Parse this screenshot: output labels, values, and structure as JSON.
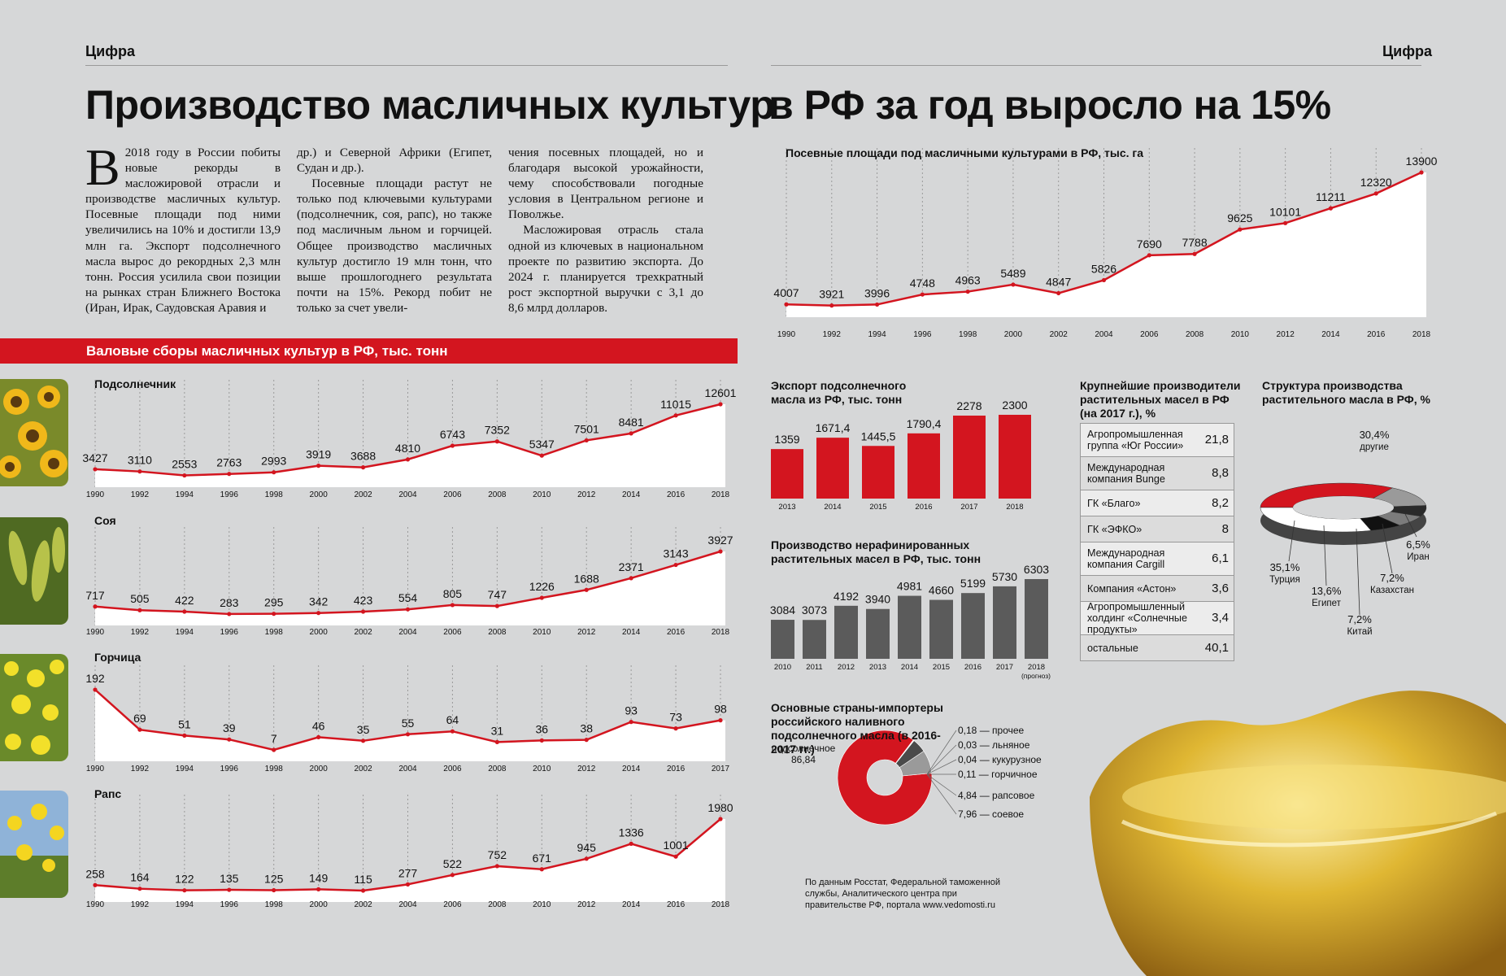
{
  "header": {
    "section_left": "Цифра",
    "section_right": "Цифра",
    "title_part1": "Производство масличных культур",
    "title_part2": "в РФ за год выросло на 15%"
  },
  "article": {
    "dropcap": "В",
    "col1": "2018 году в России побиты новые рекорды в масложировой отрасли и производстве масличных культур. Посевные площади под ними увеличились на 10% и достигли 13,9 млн га. Экспорт подсолнечного масла вырос до рекордных 2,3 млн тонн. Россия усилила свои позиции на рынках стран Ближнего Востока (Иран, Ирак, Саудовская Аравия и",
    "col2a": "др.) и Северной Африки (Египет, Судан и др.).",
    "col2b": "Посевные площади растут не только под ключевыми культурами (подсолнечник, соя, рапс), но также под масличным льном и горчицей. Общее производство масличных культур достигло 19 млн тонн, что выше прошлогоднего результата почти на 15%. Рекорд побит не только за счет увели-",
    "col3a": "чения посевных площадей, но и благодаря высокой урожайности, чему способствовали погодные условия в Центральном регионе и Поволжье.",
    "col3b": "Масложировая отрасль стала одной из ключевых в национальном проекте по развитию экспорта. До 2024 г. планируется трехкратный рост экспортной выручки с 3,1 до 8,6 млрд долларов."
  },
  "gross_harvest_title": "Валовые сборы масличных культур в РФ, тыс. тонн",
  "source_note": "По данным Росстат, Федеральной таможенной службы, Аналитического центра при правительстве РФ, портала www.vedomosti.ru",
  "chart_data": [
    {
      "id": "sown",
      "type": "line",
      "title": "Посевные площади под масличными культурами в РФ, тыс. га",
      "x": [
        "1990",
        "1992",
        "1994",
        "1996",
        "1998",
        "2000",
        "2002",
        "2004",
        "2006",
        "2008",
        "2010",
        "2012",
        "2014",
        "2016",
        "2018"
      ],
      "values": [
        4007,
        3921,
        3996,
        4748,
        4963,
        5489,
        4847,
        5826,
        7690,
        7788,
        9625,
        10101,
        11211,
        12320,
        13900
      ],
      "labels": [
        "4007",
        "3921",
        "3996",
        "4748",
        "4963",
        "5489",
        "4847",
        "5826",
        "7690",
        "7788",
        "9625",
        "10101",
        "11211",
        "12320",
        "13900"
      ]
    },
    {
      "id": "sunflower",
      "type": "line",
      "title": "Подсолнечник",
      "x": [
        "1990",
        "1992",
        "1994",
        "1996",
        "1998",
        "2000",
        "2002",
        "2004",
        "2006",
        "2008",
        "2010",
        "2012",
        "2014",
        "2016",
        "2018"
      ],
      "values": [
        3427,
        3110,
        2553,
        2763,
        2993,
        3919,
        3688,
        4810,
        6743,
        7352,
        5347,
        7501,
        8481,
        11015,
        12601
      ],
      "labels": [
        "3427",
        "3110",
        "2553",
        "2763",
        "2993",
        "3919",
        "3688",
        "4810",
        "6743",
        "7352",
        "5347",
        "7501",
        "8481",
        "11015",
        "12601"
      ]
    },
    {
      "id": "soy",
      "type": "line",
      "title": "Соя",
      "x": [
        "1990",
        "1992",
        "1994",
        "1996",
        "1998",
        "2000",
        "2002",
        "2004",
        "2006",
        "2008",
        "2010",
        "2012",
        "2014",
        "2016",
        "2018"
      ],
      "values": [
        717,
        505,
        422,
        283,
        295,
        342,
        423,
        554,
        805,
        747,
        1226,
        1688,
        2371,
        3143,
        3927
      ],
      "labels": [
        "717",
        "505",
        "422",
        "283",
        "295",
        "342",
        "423",
        "554",
        "805",
        "747",
        "1226",
        "1688",
        "2371",
        "3143",
        "3927"
      ]
    },
    {
      "id": "mustard",
      "type": "line",
      "title": "Горчица",
      "x": [
        "1990",
        "1992",
        "1994",
        "1996",
        "1998",
        "2000",
        "2002",
        "2004",
        "2006",
        "2008",
        "2010",
        "2012",
        "2014",
        "2016",
        "2017"
      ],
      "values": [
        192,
        69,
        51,
        39,
        7,
        46,
        35,
        55,
        64,
        31,
        36,
        38,
        93,
        73,
        98
      ],
      "labels": [
        "192",
        "69",
        "51",
        "39",
        "7",
        "46",
        "35",
        "55",
        "64",
        "31",
        "36",
        "38",
        "93",
        "73",
        "98"
      ]
    },
    {
      "id": "rapeseed",
      "type": "line",
      "title": "Рапс",
      "x": [
        "1990",
        "1992",
        "1994",
        "1996",
        "1998",
        "2000",
        "2002",
        "2004",
        "2006",
        "2008",
        "2010",
        "2012",
        "2014",
        "2016",
        "2018"
      ],
      "values": [
        258,
        164,
        122,
        135,
        125,
        149,
        115,
        277,
        522,
        752,
        671,
        945,
        1336,
        1001,
        1980
      ],
      "labels": [
        "258",
        "164",
        "122",
        "135",
        "125",
        "149",
        "115",
        "277",
        "522",
        "752",
        "671",
        "945",
        "1336",
        "1001",
        "1980"
      ]
    },
    {
      "id": "export",
      "type": "bar",
      "title": "Экспорт подсолнечного масла из РФ, тыс. тонн",
      "categories": [
        "2013",
        "2014",
        "2015",
        "2016",
        "2017",
        "2018"
      ],
      "values": [
        1359,
        1671.4,
        1445.5,
        1790.4,
        2278,
        2300
      ],
      "labels": [
        "1359",
        "1671,4",
        "1445,5",
        "1790,4",
        "2278",
        "2300"
      ]
    },
    {
      "id": "crude",
      "type": "bar",
      "title": "Производство нерафинированных растительных масел в РФ, тыс. тонн",
      "categories": [
        "2010",
        "2011",
        "2012",
        "2013",
        "2014",
        "2015",
        "2016",
        "2017",
        "2018"
      ],
      "forecast_note": "(прогноз)",
      "values": [
        3084,
        3073,
        4192,
        3940,
        4981,
        4660,
        5199,
        5730,
        6303
      ],
      "labels": [
        "3084",
        "3073",
        "4192",
        "3940",
        "4981",
        "4660",
        "5199",
        "5730",
        "6303"
      ]
    },
    {
      "id": "producers",
      "type": "table",
      "title": "Крупнейшие производители растительных масел в РФ (на 2017 г.), %",
      "rows": [
        {
          "name": "Агропромышленная группа «Юг России»",
          "value": "21,8"
        },
        {
          "name": "Международная компания Bunge",
          "value": "8,8"
        },
        {
          "name": "ГК «Благо»",
          "value": "8,2"
        },
        {
          "name": "ГК «ЭФКО»",
          "value": "8"
        },
        {
          "name": "Международная компания Cargill",
          "value": "6,1"
        },
        {
          "name": "Компания «Астон»",
          "value": "3,6"
        },
        {
          "name": "Агропромышленный холдинг «Солнечные продукты»",
          "value": "3,4"
        },
        {
          "name": "остальные",
          "value": "40,1"
        }
      ]
    },
    {
      "id": "importers",
      "type": "pie",
      "title": "Основные страны-импортеры российского наливного подсолнечного масла (в 2016-2017 гг.)",
      "slices": [
        {
          "name": "Турция",
          "value": 35.1,
          "label": "35,1%",
          "color": "#d3151f"
        },
        {
          "name": "Египет",
          "value": 13.6,
          "label": "13,6%",
          "color": "#9a9a9a"
        },
        {
          "name": "Китай",
          "value": 7.2,
          "label": "7,2%",
          "color": "#2a2a2a"
        },
        {
          "name": "Казахстан",
          "value": 7.2,
          "label": "7,2%",
          "color": "#7c7c7c"
        },
        {
          "name": "Иран",
          "value": 6.5,
          "label": "6,5%",
          "color": "#111111"
        },
        {
          "name": "другие",
          "value": 30.4,
          "label": "30,4%",
          "color": "#ffffff"
        }
      ]
    },
    {
      "id": "structure",
      "type": "pie",
      "title": "Структура производства растительного масла в РФ, %",
      "slices": [
        {
          "name": "подсолнечное",
          "value": 86.84,
          "label": "86,84",
          "color": "#d3151f"
        },
        {
          "name": "прочее",
          "value": 0.18,
          "label": "0,18",
          "color": "#555555"
        },
        {
          "name": "льняное",
          "value": 0.03,
          "label": "0,03",
          "color": "#666666"
        },
        {
          "name": "кукурузное",
          "value": 0.04,
          "label": "0,04",
          "color": "#777777"
        },
        {
          "name": "горчичное",
          "value": 0.11,
          "label": "0,11",
          "color": "#888888"
        },
        {
          "name": "рапсовое",
          "value": 4.84,
          "label": "4,84",
          "color": "#4a4a4a"
        },
        {
          "name": "соевое",
          "value": 7.96,
          "label": "7,96",
          "color": "#9a9a9a"
        }
      ]
    }
  ]
}
